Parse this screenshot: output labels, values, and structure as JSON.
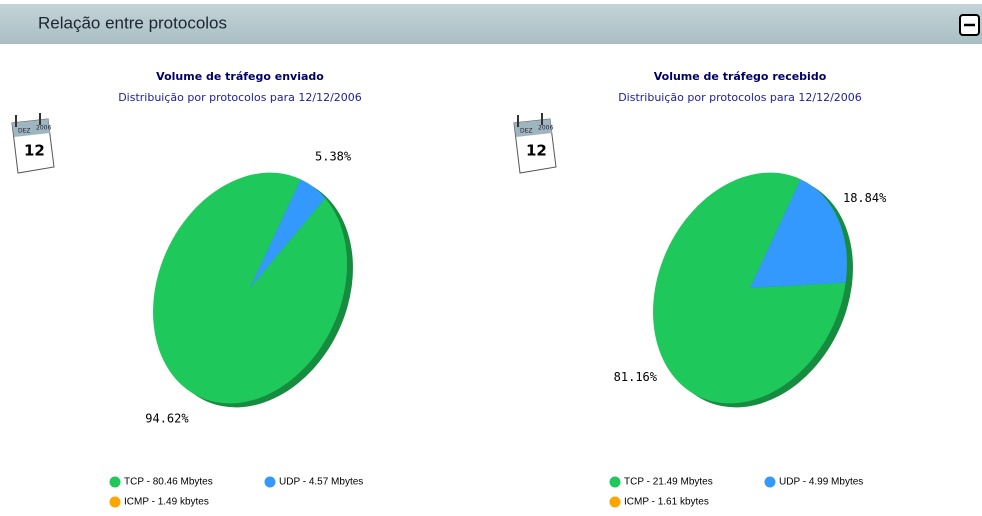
{
  "header": {
    "title": "Relação entre protocolos"
  },
  "calendar_icons": [
    {
      "month": "DEZ",
      "year": "2006",
      "day": "12"
    },
    {
      "month": "DEZ",
      "year": "2006",
      "day": "12"
    }
  ],
  "chart_data": [
    {
      "type": "pie",
      "title": "Volume de tráfego enviado",
      "subtitle": "Distribuição por protocolos para 12/12/2006",
      "categories": [
        "TCP - 80.46 Mbytes",
        "UDP - 4.57 Mbytes",
        "ICMP - 1.49 kbytes"
      ],
      "values": [
        94.62,
        5.38,
        0
      ],
      "value_labels": [
        "94.62%",
        "5.38%",
        null
      ],
      "colors": [
        "#1fc85a",
        "#3399ff",
        "#ffa500"
      ]
    },
    {
      "type": "pie",
      "title": "Volume de tráfego recebido",
      "subtitle": "Distribuição por protocolos para 12/12/2006",
      "categories": [
        "TCP - 21.49 Mbytes",
        "UDP - 4.99 Mbytes",
        "ICMP - 1.61 kbytes"
      ],
      "values": [
        81.16,
        18.84,
        0
      ],
      "value_labels": [
        "81.16%",
        "18.84%",
        null
      ],
      "colors": [
        "#1fc85a",
        "#3399ff",
        "#ffa500"
      ]
    }
  ]
}
